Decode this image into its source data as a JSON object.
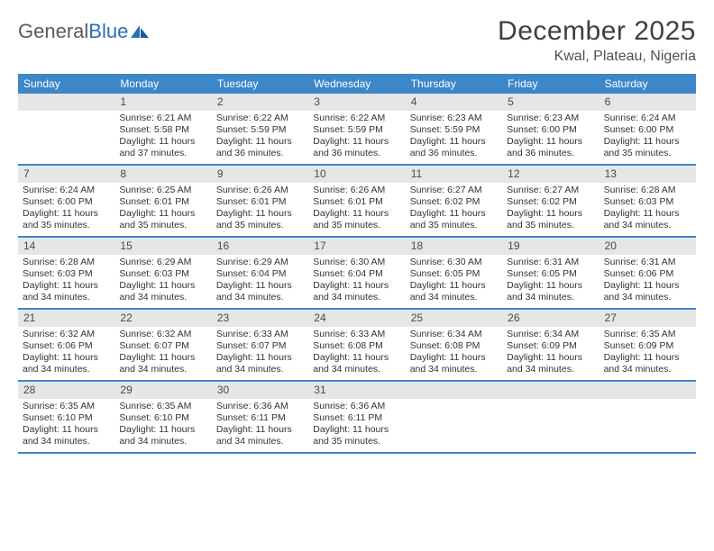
{
  "logo": {
    "word1": "General",
    "word2": "Blue"
  },
  "title": "December 2025",
  "location": "Kwal, Plateau, Nigeria",
  "colors": {
    "header_bg": "#3d87c9",
    "header_text": "#ffffff",
    "daynum_bg": "#e6e6e6",
    "daynum_text": "#4a4a4a",
    "body_text": "#333333",
    "border": "#3d87c9",
    "logo_gray": "#5a5a5a",
    "logo_blue": "#2a6fb5"
  },
  "weekdays": [
    "Sunday",
    "Monday",
    "Tuesday",
    "Wednesday",
    "Thursday",
    "Friday",
    "Saturday"
  ],
  "weeks": [
    [
      {
        "n": "",
        "lines": []
      },
      {
        "n": "1",
        "lines": [
          "Sunrise: 6:21 AM",
          "Sunset: 5:58 PM",
          "Daylight: 11 hours",
          "and 37 minutes."
        ]
      },
      {
        "n": "2",
        "lines": [
          "Sunrise: 6:22 AM",
          "Sunset: 5:59 PM",
          "Daylight: 11 hours",
          "and 36 minutes."
        ]
      },
      {
        "n": "3",
        "lines": [
          "Sunrise: 6:22 AM",
          "Sunset: 5:59 PM",
          "Daylight: 11 hours",
          "and 36 minutes."
        ]
      },
      {
        "n": "4",
        "lines": [
          "Sunrise: 6:23 AM",
          "Sunset: 5:59 PM",
          "Daylight: 11 hours",
          "and 36 minutes."
        ]
      },
      {
        "n": "5",
        "lines": [
          "Sunrise: 6:23 AM",
          "Sunset: 6:00 PM",
          "Daylight: 11 hours",
          "and 36 minutes."
        ]
      },
      {
        "n": "6",
        "lines": [
          "Sunrise: 6:24 AM",
          "Sunset: 6:00 PM",
          "Daylight: 11 hours",
          "and 35 minutes."
        ]
      }
    ],
    [
      {
        "n": "7",
        "lines": [
          "Sunrise: 6:24 AM",
          "Sunset: 6:00 PM",
          "Daylight: 11 hours",
          "and 35 minutes."
        ]
      },
      {
        "n": "8",
        "lines": [
          "Sunrise: 6:25 AM",
          "Sunset: 6:01 PM",
          "Daylight: 11 hours",
          "and 35 minutes."
        ]
      },
      {
        "n": "9",
        "lines": [
          "Sunrise: 6:26 AM",
          "Sunset: 6:01 PM",
          "Daylight: 11 hours",
          "and 35 minutes."
        ]
      },
      {
        "n": "10",
        "lines": [
          "Sunrise: 6:26 AM",
          "Sunset: 6:01 PM",
          "Daylight: 11 hours",
          "and 35 minutes."
        ]
      },
      {
        "n": "11",
        "lines": [
          "Sunrise: 6:27 AM",
          "Sunset: 6:02 PM",
          "Daylight: 11 hours",
          "and 35 minutes."
        ]
      },
      {
        "n": "12",
        "lines": [
          "Sunrise: 6:27 AM",
          "Sunset: 6:02 PM",
          "Daylight: 11 hours",
          "and 35 minutes."
        ]
      },
      {
        "n": "13",
        "lines": [
          "Sunrise: 6:28 AM",
          "Sunset: 6:03 PM",
          "Daylight: 11 hours",
          "and 34 minutes."
        ]
      }
    ],
    [
      {
        "n": "14",
        "lines": [
          "Sunrise: 6:28 AM",
          "Sunset: 6:03 PM",
          "Daylight: 11 hours",
          "and 34 minutes."
        ]
      },
      {
        "n": "15",
        "lines": [
          "Sunrise: 6:29 AM",
          "Sunset: 6:03 PM",
          "Daylight: 11 hours",
          "and 34 minutes."
        ]
      },
      {
        "n": "16",
        "lines": [
          "Sunrise: 6:29 AM",
          "Sunset: 6:04 PM",
          "Daylight: 11 hours",
          "and 34 minutes."
        ]
      },
      {
        "n": "17",
        "lines": [
          "Sunrise: 6:30 AM",
          "Sunset: 6:04 PM",
          "Daylight: 11 hours",
          "and 34 minutes."
        ]
      },
      {
        "n": "18",
        "lines": [
          "Sunrise: 6:30 AM",
          "Sunset: 6:05 PM",
          "Daylight: 11 hours",
          "and 34 minutes."
        ]
      },
      {
        "n": "19",
        "lines": [
          "Sunrise: 6:31 AM",
          "Sunset: 6:05 PM",
          "Daylight: 11 hours",
          "and 34 minutes."
        ]
      },
      {
        "n": "20",
        "lines": [
          "Sunrise: 6:31 AM",
          "Sunset: 6:06 PM",
          "Daylight: 11 hours",
          "and 34 minutes."
        ]
      }
    ],
    [
      {
        "n": "21",
        "lines": [
          "Sunrise: 6:32 AM",
          "Sunset: 6:06 PM",
          "Daylight: 11 hours",
          "and 34 minutes."
        ]
      },
      {
        "n": "22",
        "lines": [
          "Sunrise: 6:32 AM",
          "Sunset: 6:07 PM",
          "Daylight: 11 hours",
          "and 34 minutes."
        ]
      },
      {
        "n": "23",
        "lines": [
          "Sunrise: 6:33 AM",
          "Sunset: 6:07 PM",
          "Daylight: 11 hours",
          "and 34 minutes."
        ]
      },
      {
        "n": "24",
        "lines": [
          "Sunrise: 6:33 AM",
          "Sunset: 6:08 PM",
          "Daylight: 11 hours",
          "and 34 minutes."
        ]
      },
      {
        "n": "25",
        "lines": [
          "Sunrise: 6:34 AM",
          "Sunset: 6:08 PM",
          "Daylight: 11 hours",
          "and 34 minutes."
        ]
      },
      {
        "n": "26",
        "lines": [
          "Sunrise: 6:34 AM",
          "Sunset: 6:09 PM",
          "Daylight: 11 hours",
          "and 34 minutes."
        ]
      },
      {
        "n": "27",
        "lines": [
          "Sunrise: 6:35 AM",
          "Sunset: 6:09 PM",
          "Daylight: 11 hours",
          "and 34 minutes."
        ]
      }
    ],
    [
      {
        "n": "28",
        "lines": [
          "Sunrise: 6:35 AM",
          "Sunset: 6:10 PM",
          "Daylight: 11 hours",
          "and 34 minutes."
        ]
      },
      {
        "n": "29",
        "lines": [
          "Sunrise: 6:35 AM",
          "Sunset: 6:10 PM",
          "Daylight: 11 hours",
          "and 34 minutes."
        ]
      },
      {
        "n": "30",
        "lines": [
          "Sunrise: 6:36 AM",
          "Sunset: 6:11 PM",
          "Daylight: 11 hours",
          "and 34 minutes."
        ]
      },
      {
        "n": "31",
        "lines": [
          "Sunrise: 6:36 AM",
          "Sunset: 6:11 PM",
          "Daylight: 11 hours",
          "and 35 minutes."
        ]
      },
      {
        "n": "",
        "lines": []
      },
      {
        "n": "",
        "lines": []
      },
      {
        "n": "",
        "lines": []
      }
    ]
  ]
}
